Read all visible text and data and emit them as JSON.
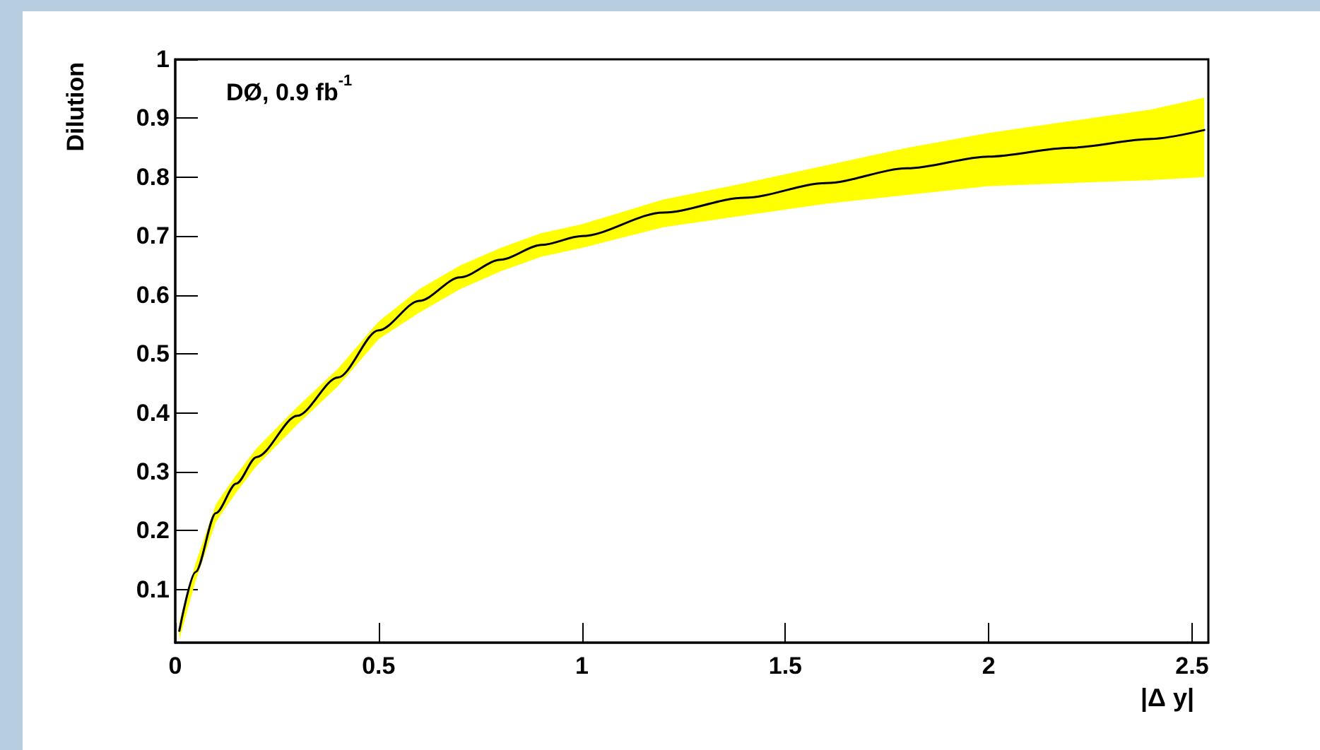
{
  "chart_data": {
    "type": "line",
    "xlabel": "|Δ y|",
    "ylabel": "Dilution",
    "annotations": [
      "DØ, 0.9 fb$^{-1}$"
    ],
    "xlim": [
      0,
      2.54
    ],
    "ylim": [
      0.01,
      1
    ],
    "xticks": [
      0,
      0.5,
      1,
      1.5,
      2,
      2.5
    ],
    "yticks": [
      0.1,
      0.2,
      0.3,
      0.4,
      0.5,
      0.6,
      0.7,
      0.8,
      0.9,
      1
    ],
    "marker": "none",
    "line_style": "solid",
    "series": [
      {
        "color": "#000000",
        "x": [
          0.01,
          0.05,
          0.1,
          0.15,
          0.2,
          0.3,
          0.4,
          0.5,
          0.6,
          0.7,
          0.8,
          0.9,
          1.0,
          1.2,
          1.4,
          1.6,
          1.8,
          2.0,
          2.2,
          2.4,
          2.53
        ],
        "values": [
          0.03,
          0.13,
          0.23,
          0.28,
          0.325,
          0.395,
          0.46,
          0.54,
          0.59,
          0.63,
          0.66,
          0.685,
          0.7,
          0.74,
          0.765,
          0.79,
          0.815,
          0.835,
          0.85,
          0.865,
          0.88
        ],
        "lower": [
          0.015,
          0.115,
          0.215,
          0.265,
          0.31,
          0.38,
          0.445,
          0.525,
          0.57,
          0.61,
          0.64,
          0.665,
          0.68,
          0.715,
          0.735,
          0.755,
          0.77,
          0.785,
          0.79,
          0.795,
          0.8
        ],
        "upper": [
          0.045,
          0.145,
          0.245,
          0.295,
          0.34,
          0.41,
          0.475,
          0.555,
          0.61,
          0.65,
          0.68,
          0.705,
          0.72,
          0.762,
          0.79,
          0.82,
          0.85,
          0.875,
          0.895,
          0.915,
          0.935
        ]
      }
    ]
  }
}
